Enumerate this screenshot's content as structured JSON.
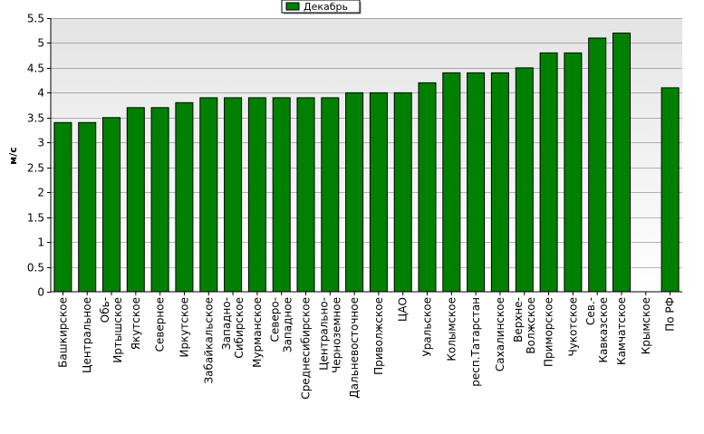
{
  "chart_data": {
    "type": "bar",
    "title": "",
    "xlabel": "",
    "ylabel": "м/с",
    "ylim": [
      0,
      5.5
    ],
    "yticks": [
      0,
      0.5,
      1,
      1.5,
      2,
      2.5,
      3,
      3.5,
      4,
      4.5,
      5,
      5.5
    ],
    "ytick_labels": [
      "0",
      "0.5",
      "1",
      "1.5",
      "2",
      "2.5",
      "3",
      "3.5",
      "4",
      "4.5",
      "5",
      "5.5"
    ],
    "grid": true,
    "legend_position": "top-center",
    "categories": [
      [
        "Башкирское"
      ],
      [
        "Центральное"
      ],
      [
        "Обь-",
        "Иртышское"
      ],
      [
        "Якутское"
      ],
      [
        "Северное"
      ],
      [
        "Иркутское"
      ],
      [
        "Забайкальское"
      ],
      [
        "Западно-",
        "Сибирское"
      ],
      [
        "Мурманское"
      ],
      [
        "Северо-",
        "Западное"
      ],
      [
        "Среднесибирское"
      ],
      [
        "Центрально-",
        "Черноземное"
      ],
      [
        "Дальневосточное"
      ],
      [
        "Приволжское"
      ],
      [
        "ЦАО"
      ],
      [
        "Уральское"
      ],
      [
        "Колымское"
      ],
      [
        "респ.Татарстан"
      ],
      [
        "Сахалинское"
      ],
      [
        "Верхне-",
        "Волжское"
      ],
      [
        "Приморское"
      ],
      [
        "Чукотское"
      ],
      [
        "Сев.-",
        "Кавказское"
      ],
      [
        "Камчатское"
      ],
      [
        "Крымское"
      ],
      [
        "По РФ"
      ]
    ],
    "series": [
      {
        "name": "Декабрь",
        "color": "#008000",
        "values": [
          3.4,
          3.4,
          3.5,
          3.7,
          3.7,
          3.8,
          3.9,
          3.9,
          3.9,
          3.9,
          3.9,
          3.9,
          4.0,
          4.0,
          4.0,
          4.2,
          4.4,
          4.4,
          4.4,
          4.5,
          4.8,
          4.8,
          5.1,
          5.2,
          null,
          4.1
        ]
      }
    ]
  }
}
